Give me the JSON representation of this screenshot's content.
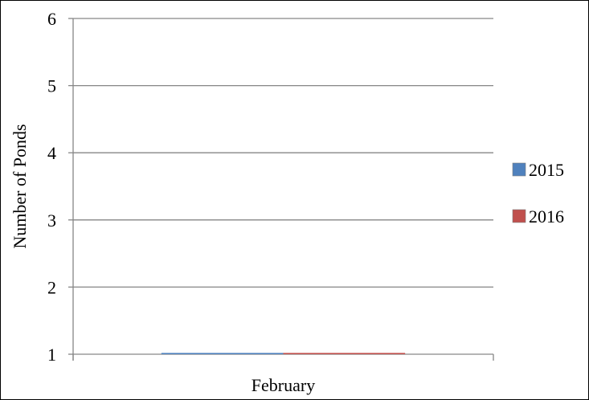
{
  "chart_data": {
    "type": "bar",
    "categories": [
      "February"
    ],
    "series": [
      {
        "name": "2015",
        "values": [
          1
        ],
        "color": "#4F81BD"
      },
      {
        "name": "2016",
        "values": [
          1
        ],
        "color": "#C0504D"
      }
    ],
    "ylabel": "Number of Ponds",
    "ylim": [
      1,
      6
    ],
    "yticks": [
      "1",
      "2",
      "3",
      "4",
      "5",
      "6"
    ],
    "grid": true,
    "legend": "right"
  }
}
